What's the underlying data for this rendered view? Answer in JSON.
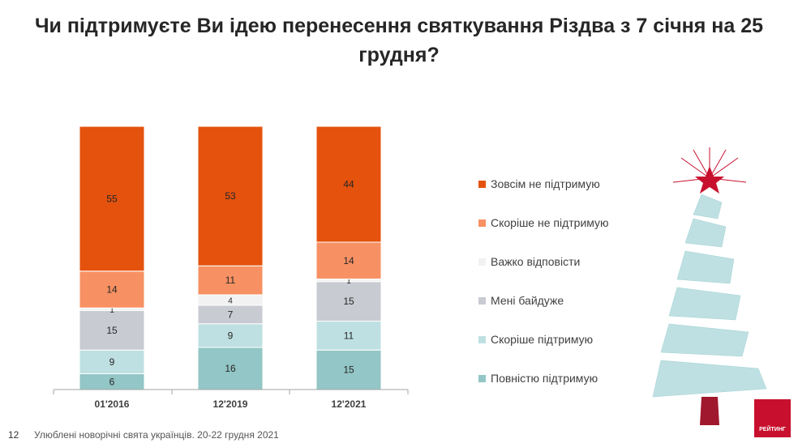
{
  "title": "Чи підтримуєте Ви ідею перенесення святкування Різдва з 7 січня на 25 грудня?",
  "chart_data": {
    "type": "bar",
    "stacked": true,
    "title": "Чи підтримуєте Ви ідею перенесення святкування Різдва з 7 січня на 25 грудня?",
    "categories": [
      "01'2016",
      "12'2019",
      "12'2021"
    ],
    "ylim": [
      0,
      100
    ],
    "grid": false,
    "legend_position": "right",
    "series": [
      {
        "name": "Повністю підтримую",
        "color": "#93c6c6",
        "values": [
          6,
          16,
          15
        ]
      },
      {
        "name": "Скоріше  підтримую",
        "color": "#bfe0e2",
        "values": [
          9,
          9,
          11
        ]
      },
      {
        "name": "Мені байдуже",
        "color": "#c8cbd1",
        "values": [
          15,
          7,
          15
        ]
      },
      {
        "name": "Важко відповісти",
        "color": "#f2f2f2",
        "values": [
          1,
          4,
          1
        ]
      },
      {
        "name": "Скоріше  не підтримую",
        "color": "#f79163",
        "values": [
          14,
          11,
          14
        ]
      },
      {
        "name": "Зовсім не підтримую",
        "color": "#e4520d",
        "values": [
          55,
          53,
          44
        ]
      }
    ]
  },
  "footer": {
    "page": "12",
    "text": "Улюблені новорічні свята українців. 20-22 грудня 2021"
  },
  "logo": "РЕЙТИНГ"
}
